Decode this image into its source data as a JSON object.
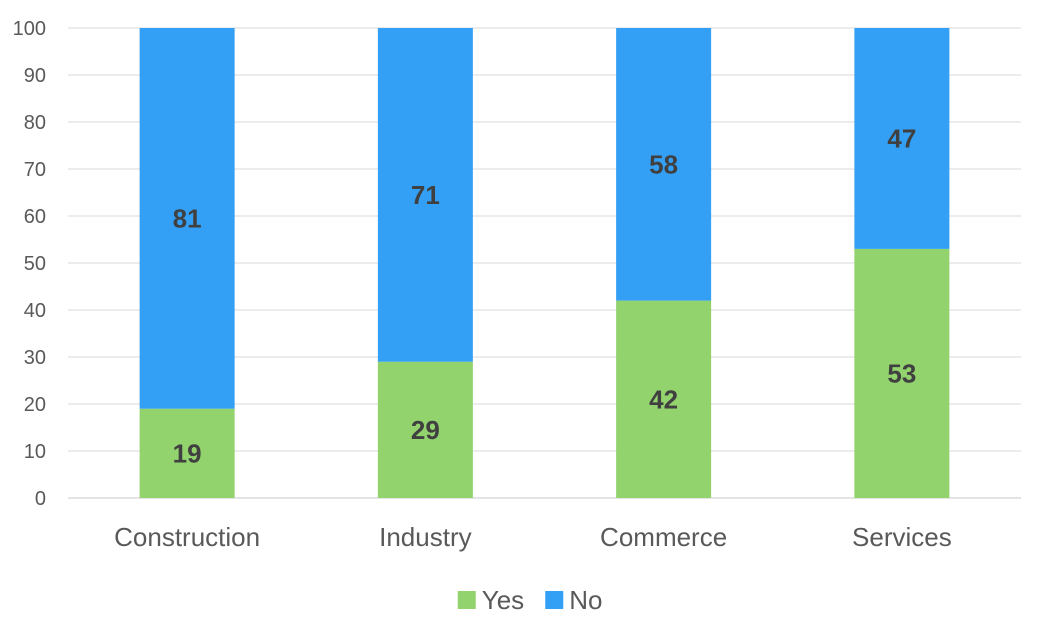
{
  "chart_data": {
    "type": "bar",
    "stacked": true,
    "categories": [
      "Construction",
      "Industry",
      "Commerce",
      "Services"
    ],
    "series": [
      {
        "name": "Yes",
        "values": [
          19,
          29,
          42,
          53
        ],
        "color": "#92d36e"
      },
      {
        "name": "No",
        "values": [
          81,
          71,
          58,
          47
        ],
        "color": "#33a0f5"
      }
    ],
    "ylim": [
      0,
      100
    ],
    "yticks": [
      0,
      10,
      20,
      30,
      40,
      50,
      60,
      70,
      80,
      90,
      100
    ],
    "grid": true,
    "legend_position": "bottom",
    "title": "",
    "xlabel": "",
    "ylabel": ""
  }
}
